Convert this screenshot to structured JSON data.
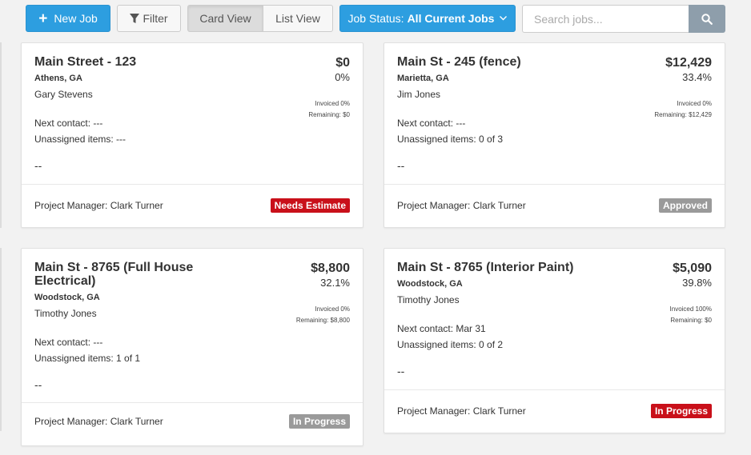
{
  "toolbar": {
    "new_job_label": "New Job",
    "filter_label": "Filter",
    "card_view_label": "Card View",
    "list_view_label": "List View",
    "status_prefix": "Job Status:",
    "status_value": "All Current Jobs",
    "search_placeholder": "Search jobs..."
  },
  "colors": {
    "primary": "#2d9ee0",
    "badge_red": "#c9101a",
    "badge_gray": "#9a9a9a",
    "search_button": "#8e9eab"
  },
  "icons": [
    "plus-icon",
    "filter-icon",
    "chevron-down-icon",
    "search-icon"
  ],
  "jobs": [
    {
      "title": "Main Street - 123",
      "location": "Athens, GA",
      "customer": "Gary Stevens",
      "amount": "$0",
      "percent": "0%",
      "invoiced": "Invoiced 0%",
      "remaining": "Remaining: $0",
      "next_contact": "Next contact: ---",
      "unassigned": "Unassigned items: ---",
      "note": "--",
      "project_manager": "Project Manager: Clark Turner",
      "status": "Needs Estimate"
    },
    {
      "title": "Main St - 245 (fence)",
      "location": "Marietta, GA",
      "customer": "Jim Jones",
      "amount": "$12,429",
      "percent": "33.4%",
      "invoiced": "Invoiced 0%",
      "remaining": "Remaining: $12,429",
      "next_contact": "Next contact: ---",
      "unassigned": "Unassigned items: 0 of 3",
      "note": "--",
      "project_manager": "Project Manager: Clark Turner",
      "status": "Approved"
    },
    {
      "title": "Main St - 8765 (Full House Electrical)",
      "location": "Woodstock, GA",
      "customer": "Timothy Jones",
      "amount": "$8,800",
      "percent": "32.1%",
      "invoiced": "Invoiced 0%",
      "remaining": "Remaining: $8,800",
      "next_contact": "Next contact: ---",
      "unassigned": "Unassigned items: 1 of 1",
      "note": "--",
      "project_manager": "Project Manager: Clark Turner",
      "status": "In Progress"
    },
    {
      "title": "Main St - 8765 (Interior Paint)",
      "location": "Woodstock, GA",
      "customer": "Timothy Jones",
      "amount": "$5,090",
      "percent": "39.8%",
      "invoiced": "Invoiced 100%",
      "remaining": "Remaining: $0",
      "next_contact": "Next contact: Mar 31",
      "unassigned": "Unassigned items: 0 of 2",
      "note": "--",
      "project_manager": "Project Manager: Clark Turner",
      "status": "In Progress"
    }
  ]
}
